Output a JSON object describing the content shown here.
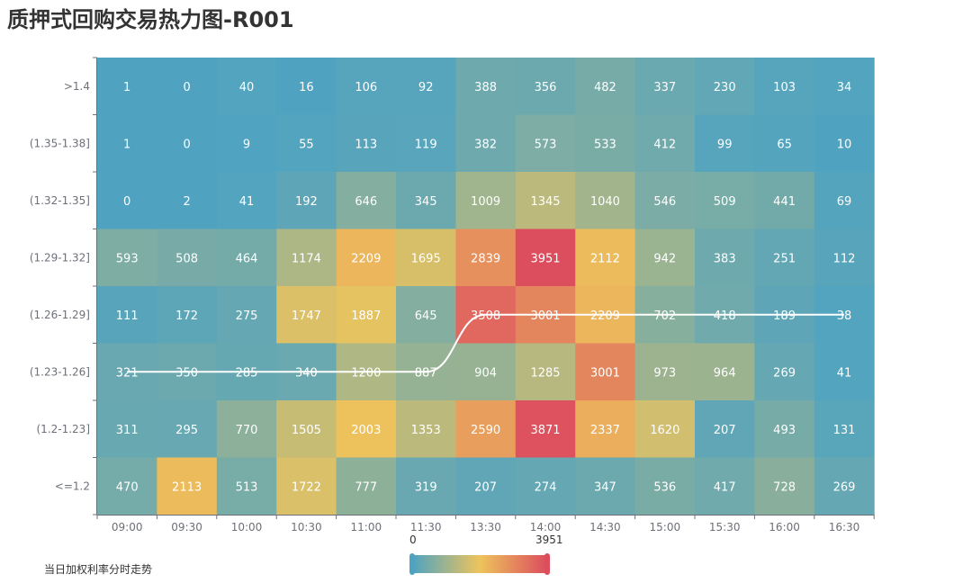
{
  "title": "质押式回购交易热力图-R001",
  "footer_label": "当日加权利率分时走势",
  "colors": {
    "low": "#4FA3C1",
    "mid": "#EDC45C",
    "high": "#DC4D5E",
    "line": "#FFFFFF"
  },
  "chart_data": {
    "type": "heatmap",
    "title": "质押式回购交易热力图-R001",
    "x_categories": [
      "09:00",
      "09:30",
      "10:00",
      "10:30",
      "11:00",
      "11:30",
      "13:30",
      "14:00",
      "14:30",
      "15:00",
      "15:30",
      "16:00",
      "16:30"
    ],
    "y_categories": [
      ">1.4",
      "(1.35-1.38]",
      "(1.32-1.35]",
      "(1.29-1.32]",
      "(1.26-1.29]",
      "(1.23-1.26]",
      "(1.2-1.23]",
      "<=1.2"
    ],
    "values": [
      [
        1,
        0,
        40,
        16,
        106,
        92,
        388,
        356,
        482,
        337,
        230,
        103,
        34
      ],
      [
        1,
        0,
        9,
        55,
        113,
        119,
        382,
        573,
        533,
        412,
        99,
        65,
        10
      ],
      [
        0,
        2,
        41,
        192,
        646,
        345,
        1009,
        1345,
        1040,
        546,
        509,
        441,
        69
      ],
      [
        593,
        508,
        464,
        1174,
        2209,
        1695,
        2839,
        3951,
        2112,
        942,
        383,
        251,
        112
      ],
      [
        111,
        172,
        275,
        1747,
        1887,
        645,
        3508,
        3001,
        2209,
        702,
        418,
        189,
        38
      ],
      [
        321,
        350,
        285,
        340,
        1200,
        887,
        904,
        1285,
        3001,
        973,
        964,
        269,
        41
      ],
      [
        311,
        295,
        770,
        1505,
        2003,
        1353,
        2590,
        3871,
        2337,
        1620,
        207,
        493,
        131
      ],
      [
        470,
        2113,
        513,
        1722,
        777,
        319,
        207,
        274,
        347,
        536,
        417,
        728,
        269
      ]
    ],
    "visual_map": {
      "min": 0,
      "max": 3951,
      "min_label": "0",
      "max_label": "3951"
    },
    "line_series": {
      "name": "当日加权利率分时走势",
      "y_category_index_by_x": [
        5,
        5,
        5,
        5,
        5,
        5,
        4,
        4,
        4,
        4,
        4,
        4,
        4
      ]
    }
  }
}
